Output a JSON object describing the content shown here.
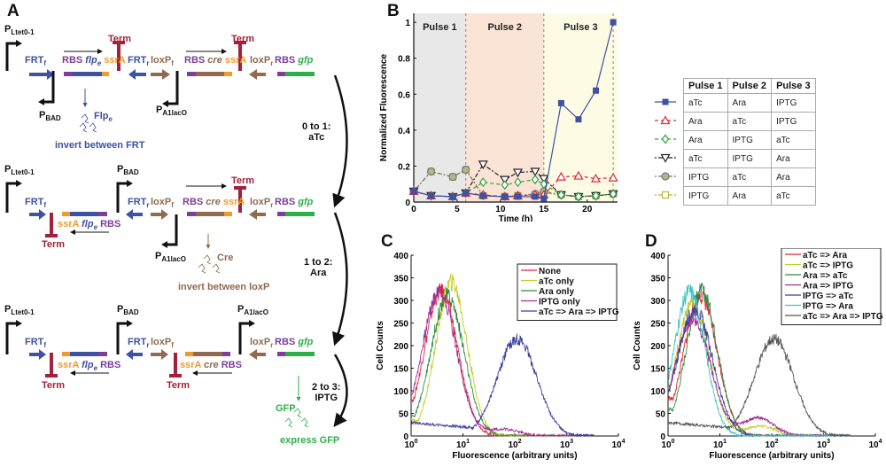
{
  "panels": {
    "A": {
      "label": "A",
      "rows": [
        {
          "promoters": [
            "PLtet0-1",
            "PBAD",
            "PA1lacO"
          ],
          "parts": [
            "FRTf",
            "RBS flpe ssrA",
            "Term",
            "FRTr",
            "loxPf",
            "RBS cre ssrA",
            "Term",
            "loxPr",
            "RBS gfp"
          ],
          "protein_note": {
            "name": "Flpe",
            "action": "invert between FRT"
          }
        },
        {
          "promoters": [
            "PLtet0-1",
            "PBAD",
            "PA1lacO"
          ],
          "parts": [
            "FRTf",
            "Term",
            "ssrA flpe RBS",
            "FRTr",
            "loxPf",
            "RBS cre ssrA",
            "Term",
            "loxPr",
            "RBS gfp"
          ],
          "protein_note": {
            "name": "Cre",
            "action": "invert between loxP"
          }
        },
        {
          "promoters": [
            "PLtet0-1",
            "PBAD",
            "PA1lacO"
          ],
          "parts": [
            "FRTf",
            "Term",
            "ssrA flpe RBS",
            "FRTr",
            "loxPf",
            "Term",
            "ssrA cre RBS",
            "loxPr",
            "RBS gfp"
          ],
          "protein_note": {
            "name": "GFP",
            "action": "express GFP"
          }
        }
      ],
      "transitions": [
        {
          "step": "0 to 1:",
          "inducer": "aTc"
        },
        {
          "step": "1 to 2:",
          "inducer": "Ara"
        },
        {
          "step": "2 to 3:",
          "inducer": "IPTG"
        }
      ],
      "text": {
        "P": "P",
        "Ltet": "Ltet0-1",
        "BAD": "BAD",
        "A1lacO": "A1lacO",
        "FRT": "FRT",
        "f": "f",
        "r": "r",
        "loxP": "loxP",
        "RBS": "RBS",
        "flp": "flp",
        "e": "e",
        "ssrA": "ssrA",
        "cre": "cre",
        "gfp": "gfp",
        "Term": "Term",
        "Flp": "Flp",
        "Cre": "Cre",
        "GFP": "GFP",
        "invFRT": "invert between FRT",
        "invLoxP": "invert between loxP",
        "express": "express GFP"
      },
      "colors": {
        "frt": "#3f51a3",
        "loxp": "#8f6a4e",
        "rbs": "#7b3f98",
        "ssra": "#ef9a2d",
        "gfp": "#2eae49",
        "term": "#a3213a"
      }
    }
  },
  "chart_data": [
    {
      "panel": "B",
      "type": "line",
      "title": "",
      "xlabel": "Time (h)",
      "ylabel": "Normalized Fluorescence",
      "xlim": [
        0,
        23.5
      ],
      "ylim": [
        0,
        1.05
      ],
      "xticks": [
        0,
        5,
        10,
        15,
        20
      ],
      "yticks": [
        0,
        0.2,
        0.4,
        0.6,
        0.8,
        1
      ],
      "ytick_labels": [
        "0",
        "0.2",
        "0.4",
        "0.6",
        "0.8",
        "1"
      ],
      "regions": [
        {
          "label": "Pulse 1",
          "from": 0,
          "to": 6,
          "color": "#e8e8e8"
        },
        {
          "label": "Pulse 2",
          "from": 6,
          "to": 15,
          "color": "#fbe3d6"
        },
        {
          "label": "Pulse 3",
          "from": 15,
          "to": 23.5,
          "color": "#fdfbe3"
        }
      ],
      "boundaries": [
        6,
        15,
        23
      ],
      "x": [
        0,
        2,
        4.5,
        6,
        8,
        10.5,
        12,
        14,
        15,
        17,
        19,
        21,
        23
      ],
      "series": [
        {
          "name": "aTc / Ara / IPTG",
          "color": "#3f51a3",
          "marker": "square-filled",
          "dash": "",
          "values": [
            0.06,
            0.035,
            0.03,
            0.05,
            0.035,
            0.03,
            0.03,
            0.03,
            0.02,
            0.55,
            0.46,
            0.62,
            1.0
          ]
        },
        {
          "name": "Ara / aTc / IPTG",
          "color": "#e0263a",
          "marker": "triangle-up",
          "dash": "4,3",
          "values": [
            0.06,
            0.035,
            0.03,
            0.05,
            0.04,
            0.03,
            0.035,
            0.04,
            0.04,
            0.14,
            0.145,
            0.13,
            0.135
          ]
        },
        {
          "name": "Ara / IPTG / aTc",
          "color": "#2ea043",
          "marker": "diamond",
          "dash": "4,3",
          "values": [
            0.06,
            0.035,
            0.03,
            0.05,
            0.11,
            0.095,
            0.11,
            0.125,
            0.1,
            0.04,
            0.03,
            0.035,
            0.045
          ]
        },
        {
          "name": "aTc / IPTG / Ara",
          "color": "#222222",
          "marker": "triangle-down",
          "dash": "2,2,5,2",
          "values": [
            0.06,
            0.035,
            0.03,
            0.05,
            0.21,
            0.125,
            0.165,
            0.17,
            0.13,
            0.04,
            0.03,
            0.035,
            0.045
          ]
        },
        {
          "name": "IPTG / aTc / Ara",
          "color": "#777777",
          "marker": "circle",
          "dash": "2,2,5,2",
          "values": [
            0.06,
            0.17,
            0.14,
            0.18,
            0.035,
            0.03,
            0.035,
            0.045,
            0.06,
            0.04,
            0.03,
            0.035,
            0.045
          ]
        },
        {
          "name": "IPTG / Ara / aTc",
          "color": "#b6b83a",
          "marker": "square-open",
          "dash": "2,2,5,2",
          "values": [
            0.06,
            0.17,
            0.14,
            0.18,
            0.035,
            0.03,
            0.035,
            0.04,
            0.05,
            0.04,
            0.03,
            0.035,
            0.045
          ]
        }
      ],
      "legend_table": {
        "headers": [
          "Pulse 1",
          "Pulse 2",
          "Pulse 3"
        ],
        "rows": [
          [
            "aTc",
            "Ara",
            "IPTG"
          ],
          [
            "Ara",
            "aTc",
            "IPTG"
          ],
          [
            "Ara",
            "IPTG",
            "aTc"
          ],
          [
            "aTc",
            "IPTG",
            "Ara"
          ],
          [
            "IPTG",
            "aTc",
            "Ara"
          ],
          [
            "IPTG",
            "Ara",
            "aTc"
          ]
        ],
        "placement": "right"
      }
    },
    {
      "panel": "C",
      "type": "line",
      "xlabel": "Fluorescence (arbitrary units)",
      "ylabel": "Cell Counts",
      "xscale": "log",
      "xlim": [
        1,
        10000
      ],
      "ylim": [
        0,
        400
      ],
      "xtick_exponents": [
        0,
        1,
        2,
        3,
        4
      ],
      "yticks": [
        0,
        50,
        100,
        150,
        200,
        250,
        300,
        350,
        400
      ],
      "legend_placement": "top-right",
      "series": [
        {
          "name": "None",
          "color": "#e0263a",
          "peak_x": 3.8,
          "peak_y": 320,
          "width": 0.32,
          "start_y": 80,
          "second_peak": null
        },
        {
          "name": "aTc only",
          "color": "#c4cc2a",
          "peak_x": 6.0,
          "peak_y": 340,
          "width": 0.3,
          "start_y": 35,
          "second_peak": null
        },
        {
          "name": "Ara only",
          "color": "#2e8b3e",
          "peak_x": 5.0,
          "peak_y": 310,
          "width": 0.32,
          "start_y": 45,
          "second_peak": null
        },
        {
          "name": "IPTG only",
          "color": "#a0309a",
          "peak_x": 3.5,
          "peak_y": 320,
          "width": 0.33,
          "start_y": 95,
          "second_peak": {
            "x": 60,
            "y": 15
          }
        },
        {
          "name": "aTc => Ara => IPTG",
          "color": "#3a3ea0",
          "peak_x": 110,
          "peak_y": 215,
          "width": 0.38,
          "start_y": 30,
          "second_peak": null
        }
      ]
    },
    {
      "panel": "D",
      "type": "line",
      "xlabel": "Fluorescence (arbitrary units)",
      "ylabel": "Cell Counts",
      "xscale": "log",
      "xlim": [
        1,
        10000
      ],
      "ylim": [
        0,
        400
      ],
      "xtick_exponents": [
        0,
        1,
        2,
        3,
        4
      ],
      "yticks": [
        0,
        50,
        100,
        150,
        200,
        250,
        300,
        350,
        400
      ],
      "legend_placement": "top-right",
      "series": [
        {
          "name": "aTc => Ara",
          "color": "#e0263a",
          "peak_x": 4.2,
          "peak_y": 310,
          "width": 0.32,
          "start_y": 85,
          "second_peak": null
        },
        {
          "name": "aTc => IPTG",
          "color": "#c4cc2a",
          "peak_x": 3.0,
          "peak_y": 290,
          "width": 0.32,
          "start_y": 105,
          "second_peak": {
            "x": 60,
            "y": 22
          }
        },
        {
          "name": "Ara => aTc",
          "color": "#2e8b3e",
          "peak_x": 4.5,
          "peak_y": 320,
          "width": 0.3,
          "start_y": 60,
          "second_peak": null
        },
        {
          "name": "Ara => IPTG",
          "color": "#a0309a",
          "peak_x": 3.0,
          "peak_y": 260,
          "width": 0.34,
          "start_y": 95,
          "second_peak": {
            "x": 55,
            "y": 40
          }
        },
        {
          "name": "IPTG => aTc",
          "color": "#3a3ea0",
          "peak_x": 3.3,
          "peak_y": 280,
          "width": 0.34,
          "start_y": 100,
          "second_peak": null
        },
        {
          "name": "IPTG => Ara",
          "color": "#3cc4c0",
          "peak_x": 2.6,
          "peak_y": 320,
          "width": 0.3,
          "start_y": 120,
          "second_peak": null
        },
        {
          "name": "aTc => Ara => IPTG",
          "color": "#555555",
          "peak_x": 110,
          "peak_y": 215,
          "width": 0.38,
          "start_y": 30,
          "second_peak": null
        }
      ]
    }
  ]
}
